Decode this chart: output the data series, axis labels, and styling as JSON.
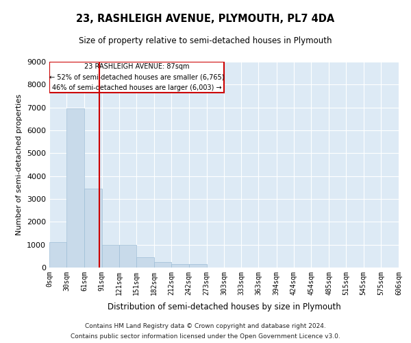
{
  "title": "23, RASHLEIGH AVENUE, PLYMOUTH, PL7 4DA",
  "subtitle": "Size of property relative to semi-detached houses in Plymouth",
  "xlabel": "Distribution of semi-detached houses by size in Plymouth",
  "ylabel": "Number of semi-detached properties",
  "bar_color": "#c8daea",
  "bar_edge_color": "#9dbdd6",
  "background_color": "#ddeaf5",
  "grid_color": "white",
  "property_value": 87,
  "property_line_color": "#cc0000",
  "annotation_box_color": "#cc0000",
  "bin_edges": [
    0,
    30,
    61,
    91,
    121,
    151,
    182,
    212,
    242,
    273,
    303,
    333,
    363,
    394,
    424,
    454,
    485,
    515,
    545,
    575,
    606
  ],
  "bin_labels": [
    "0sqm",
    "30sqm",
    "61sqm",
    "91sqm",
    "121sqm",
    "151sqm",
    "182sqm",
    "212sqm",
    "242sqm",
    "273sqm",
    "303sqm",
    "333sqm",
    "363sqm",
    "394sqm",
    "424sqm",
    "454sqm",
    "485sqm",
    "515sqm",
    "545sqm",
    "575sqm",
    "606sqm"
  ],
  "counts": [
    1100,
    6950,
    3450,
    1000,
    1000,
    450,
    250,
    150,
    150,
    0,
    0,
    0,
    0,
    0,
    0,
    0,
    0,
    0,
    0,
    0
  ],
  "ylim": [
    0,
    9000
  ],
  "yticks": [
    0,
    1000,
    2000,
    3000,
    4000,
    5000,
    6000,
    7000,
    8000,
    9000
  ],
  "annotation_title": "23 RASHLEIGH AVENUE: 87sqm",
  "annotation_line1": "← 52% of semi-detached houses are smaller (6,765)",
  "annotation_line2": "46% of semi-detached houses are larger (6,003) →",
  "footer1": "Contains HM Land Registry data © Crown copyright and database right 2024.",
  "footer2": "Contains public sector information licensed under the Open Government Licence v3.0."
}
